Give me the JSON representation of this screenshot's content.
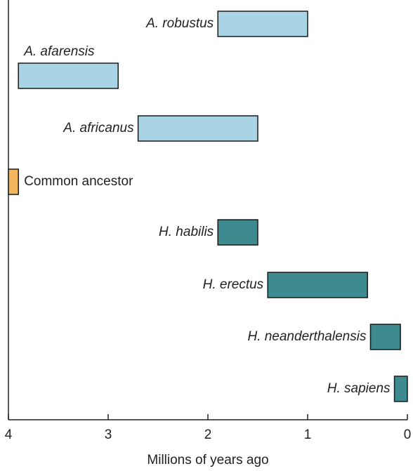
{
  "chart_data": {
    "type": "range-bar",
    "bars": [
      {
        "label": "A. robustus",
        "start": 1.9,
        "end": 1.0,
        "color": "#a8d4e6"
      },
      {
        "label": "A. afarensis",
        "start": 3.9,
        "end": 2.9,
        "color": "#a8d4e6"
      },
      {
        "label": "A. africanus",
        "start": 2.7,
        "end": 1.5,
        "color": "#a8d4e6"
      },
      {
        "label": "Common ancestor",
        "start": 4,
        "end": 3.9,
        "color": "#f3b55e"
      },
      {
        "label": "H. habilis",
        "start": 1.9,
        "end": 1.5,
        "color": "#3d8b8f"
      },
      {
        "label": "H. erectus",
        "start": 1.4,
        "end": 0.4,
        "color": "#3d8b8f"
      },
      {
        "label": "H. neanderthalensis",
        "start": 0.37,
        "end": 0.07,
        "color": "#3d8b8f"
      },
      {
        "label": "H. sapiens",
        "start": 0.13,
        "end": 0,
        "color": "#3d8b8f"
      }
    ],
    "xlim": [
      4,
      0
    ],
    "xticks": [
      4,
      3,
      2,
      1,
      0
    ],
    "xlabel": "Millions of years ago"
  }
}
